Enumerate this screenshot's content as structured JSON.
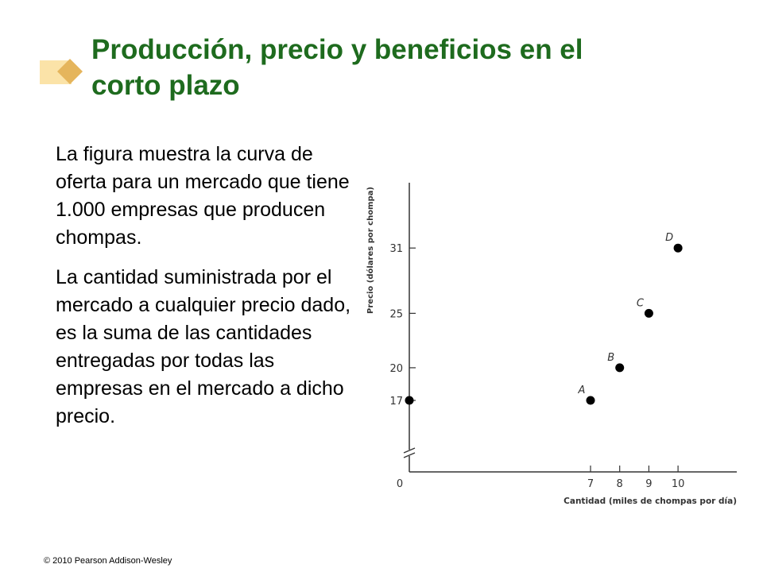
{
  "colors": {
    "title": "#1e6b1e",
    "logo_light": "#fbe3a8",
    "logo_dark": "#e5b55c",
    "axis": "#333333",
    "point": "#000000"
  },
  "title": [
    "Producción, precio y beneficios en el",
    "corto plazo"
  ],
  "paragraphs": [
    "La figura muestra la curva de oferta para un mercado que tiene 1.000 empresas que producen chompas.",
    "La cantidad suministrada por el mercado a cualquier precio dado, es la suma de las cantidades entregadas por todas las empresas en el mercado a dicho precio."
  ],
  "footer": "© 2010 Pearson Addison-Wesley",
  "chart_data": {
    "type": "scatter",
    "xlabel": "Cantidad (miles de chompas por día)",
    "ylabel": "Precio (dólares por chompa)",
    "x_ticks": [
      0,
      7,
      8,
      9,
      10
    ],
    "y_ticks": [
      17,
      20,
      25,
      31
    ],
    "axis_break": true,
    "grid": false,
    "points": [
      {
        "label": "",
        "x": 0,
        "y": 17
      },
      {
        "label": "A",
        "x": 7,
        "y": 17
      },
      {
        "label": "B",
        "x": 8,
        "y": 20
      },
      {
        "label": "C",
        "x": 9,
        "y": 25
      },
      {
        "label": "D",
        "x": 10,
        "y": 31
      }
    ]
  }
}
